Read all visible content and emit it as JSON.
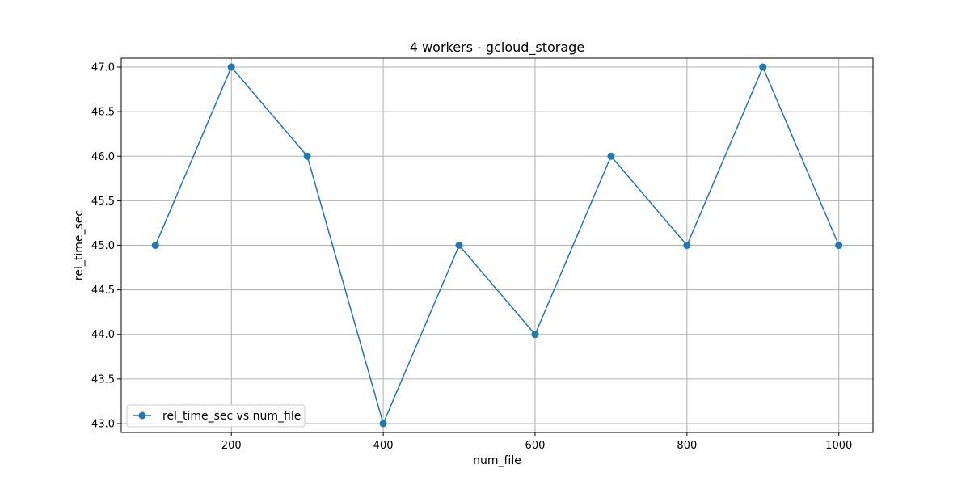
{
  "chart_data": {
    "type": "line",
    "title": "4 workers - gcloud_storage",
    "xlabel": "num_file",
    "ylabel": "rel_time_sec",
    "x": [
      100,
      200,
      300,
      400,
      500,
      600,
      700,
      800,
      900,
      1000
    ],
    "series": [
      {
        "name": "rel_time_sec vs num_file",
        "values": [
          45.0,
          47.0,
          46.0,
          43.0,
          45.0,
          44.0,
          46.0,
          45.0,
          47.0,
          45.0
        ],
        "color": "#1f77b4",
        "marker": "circle"
      }
    ],
    "xlim": [
      55,
      1045
    ],
    "ylim": [
      42.9,
      47.1
    ],
    "xticks": [
      200,
      400,
      600,
      800,
      1000
    ],
    "xtick_labels": [
      "200",
      "400",
      "600",
      "800",
      "1000"
    ],
    "yticks": [
      43.0,
      43.5,
      44.0,
      44.5,
      45.0,
      45.5,
      46.0,
      46.5,
      47.0
    ],
    "ytick_labels": [
      "43.0",
      "43.5",
      "44.0",
      "44.5",
      "45.0",
      "45.5",
      "46.0",
      "46.5",
      "47.0"
    ],
    "grid": true,
    "legend_position": "lower-left"
  }
}
